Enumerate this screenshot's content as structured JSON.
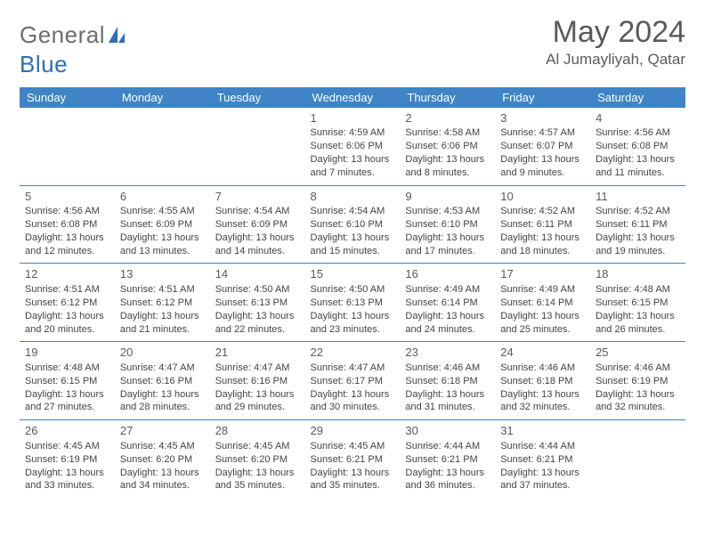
{
  "logo": {
    "part1": "General",
    "part2": "Blue"
  },
  "title": {
    "month": "May 2024",
    "location": "Al Jumayliyah, Qatar"
  },
  "colors": {
    "headerBg": "#3e84c6",
    "headerText": "#ffffff",
    "rule": "#3e84c6"
  },
  "weekdays": [
    "Sunday",
    "Monday",
    "Tuesday",
    "Wednesday",
    "Thursday",
    "Friday",
    "Saturday"
  ],
  "weeks": [
    [
      {
        "n": "",
        "t": ""
      },
      {
        "n": "",
        "t": ""
      },
      {
        "n": "",
        "t": ""
      },
      {
        "n": "1",
        "t": "Sunrise: 4:59 AM\nSunset: 6:06 PM\nDaylight: 13 hours and 7 minutes."
      },
      {
        "n": "2",
        "t": "Sunrise: 4:58 AM\nSunset: 6:06 PM\nDaylight: 13 hours and 8 minutes."
      },
      {
        "n": "3",
        "t": "Sunrise: 4:57 AM\nSunset: 6:07 PM\nDaylight: 13 hours and 9 minutes."
      },
      {
        "n": "4",
        "t": "Sunrise: 4:56 AM\nSunset: 6:08 PM\nDaylight: 13 hours and 11 minutes."
      }
    ],
    [
      {
        "n": "5",
        "t": "Sunrise: 4:56 AM\nSunset: 6:08 PM\nDaylight: 13 hours and 12 minutes."
      },
      {
        "n": "6",
        "t": "Sunrise: 4:55 AM\nSunset: 6:09 PM\nDaylight: 13 hours and 13 minutes."
      },
      {
        "n": "7",
        "t": "Sunrise: 4:54 AM\nSunset: 6:09 PM\nDaylight: 13 hours and 14 minutes."
      },
      {
        "n": "8",
        "t": "Sunrise: 4:54 AM\nSunset: 6:10 PM\nDaylight: 13 hours and 15 minutes."
      },
      {
        "n": "9",
        "t": "Sunrise: 4:53 AM\nSunset: 6:10 PM\nDaylight: 13 hours and 17 minutes."
      },
      {
        "n": "10",
        "t": "Sunrise: 4:52 AM\nSunset: 6:11 PM\nDaylight: 13 hours and 18 minutes."
      },
      {
        "n": "11",
        "t": "Sunrise: 4:52 AM\nSunset: 6:11 PM\nDaylight: 13 hours and 19 minutes."
      }
    ],
    [
      {
        "n": "12",
        "t": "Sunrise: 4:51 AM\nSunset: 6:12 PM\nDaylight: 13 hours and 20 minutes."
      },
      {
        "n": "13",
        "t": "Sunrise: 4:51 AM\nSunset: 6:12 PM\nDaylight: 13 hours and 21 minutes."
      },
      {
        "n": "14",
        "t": "Sunrise: 4:50 AM\nSunset: 6:13 PM\nDaylight: 13 hours and 22 minutes."
      },
      {
        "n": "15",
        "t": "Sunrise: 4:50 AM\nSunset: 6:13 PM\nDaylight: 13 hours and 23 minutes."
      },
      {
        "n": "16",
        "t": "Sunrise: 4:49 AM\nSunset: 6:14 PM\nDaylight: 13 hours and 24 minutes."
      },
      {
        "n": "17",
        "t": "Sunrise: 4:49 AM\nSunset: 6:14 PM\nDaylight: 13 hours and 25 minutes."
      },
      {
        "n": "18",
        "t": "Sunrise: 4:48 AM\nSunset: 6:15 PM\nDaylight: 13 hours and 26 minutes."
      }
    ],
    [
      {
        "n": "19",
        "t": "Sunrise: 4:48 AM\nSunset: 6:15 PM\nDaylight: 13 hours and 27 minutes."
      },
      {
        "n": "20",
        "t": "Sunrise: 4:47 AM\nSunset: 6:16 PM\nDaylight: 13 hours and 28 minutes."
      },
      {
        "n": "21",
        "t": "Sunrise: 4:47 AM\nSunset: 6:16 PM\nDaylight: 13 hours and 29 minutes."
      },
      {
        "n": "22",
        "t": "Sunrise: 4:47 AM\nSunset: 6:17 PM\nDaylight: 13 hours and 30 minutes."
      },
      {
        "n": "23",
        "t": "Sunrise: 4:46 AM\nSunset: 6:18 PM\nDaylight: 13 hours and 31 minutes."
      },
      {
        "n": "24",
        "t": "Sunrise: 4:46 AM\nSunset: 6:18 PM\nDaylight: 13 hours and 32 minutes."
      },
      {
        "n": "25",
        "t": "Sunrise: 4:46 AM\nSunset: 6:19 PM\nDaylight: 13 hours and 32 minutes."
      }
    ],
    [
      {
        "n": "26",
        "t": "Sunrise: 4:45 AM\nSunset: 6:19 PM\nDaylight: 13 hours and 33 minutes."
      },
      {
        "n": "27",
        "t": "Sunrise: 4:45 AM\nSunset: 6:20 PM\nDaylight: 13 hours and 34 minutes."
      },
      {
        "n": "28",
        "t": "Sunrise: 4:45 AM\nSunset: 6:20 PM\nDaylight: 13 hours and 35 minutes."
      },
      {
        "n": "29",
        "t": "Sunrise: 4:45 AM\nSunset: 6:21 PM\nDaylight: 13 hours and 35 minutes."
      },
      {
        "n": "30",
        "t": "Sunrise: 4:44 AM\nSunset: 6:21 PM\nDaylight: 13 hours and 36 minutes."
      },
      {
        "n": "31",
        "t": "Sunrise: 4:44 AM\nSunset: 6:21 PM\nDaylight: 13 hours and 37 minutes."
      },
      {
        "n": "",
        "t": ""
      }
    ]
  ]
}
